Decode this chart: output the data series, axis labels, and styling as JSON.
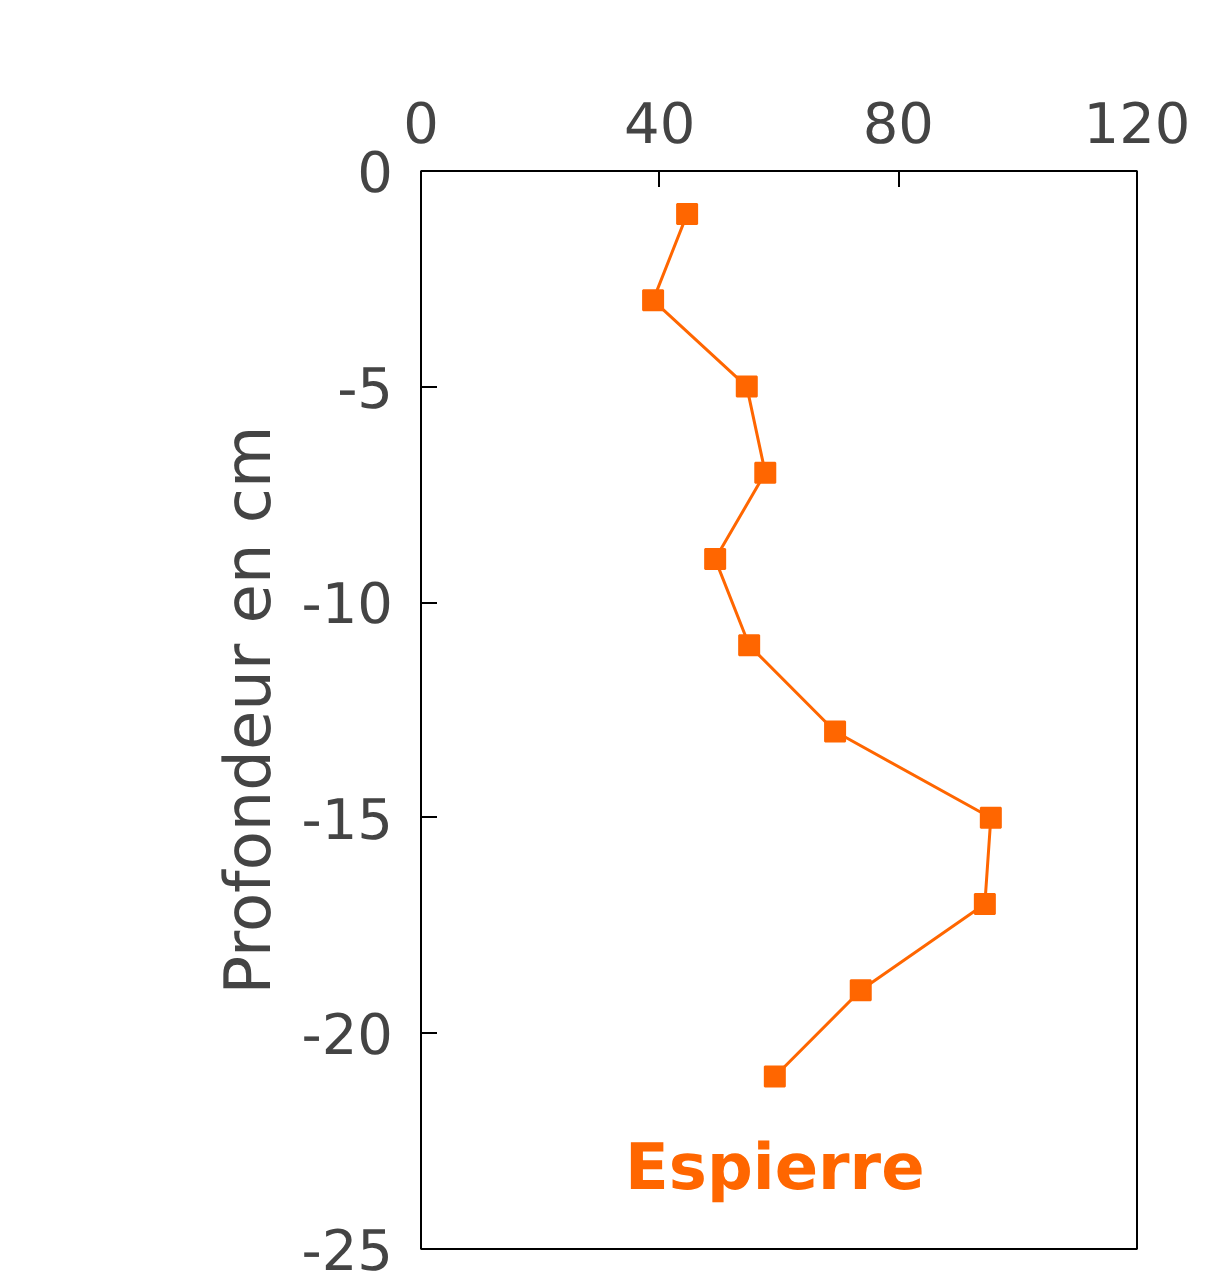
{
  "chart_data": {
    "type": "line",
    "ylabel": "Profondeur en cm",
    "series": [
      {
        "name": "Espierre",
        "color": "#ff6600",
        "x": [
          44.6,
          38.9,
          54.6,
          57.7,
          49.3,
          55,
          69.4,
          95.5,
          94.5,
          73.7,
          59.3
        ],
        "values": [
          -1,
          -3,
          -5,
          -7,
          -9,
          -11,
          -13,
          -15,
          -17,
          -19,
          -21
        ]
      }
    ],
    "xlim": [
      0,
      120
    ],
    "xticks": [
      0,
      40,
      80,
      120
    ],
    "ylim": [
      -25,
      0
    ],
    "yticks": [
      0,
      -5,
      -10,
      -15,
      -20,
      -25
    ],
    "marker": "square",
    "line_style": "solid",
    "grid": false,
    "legend": false
  }
}
